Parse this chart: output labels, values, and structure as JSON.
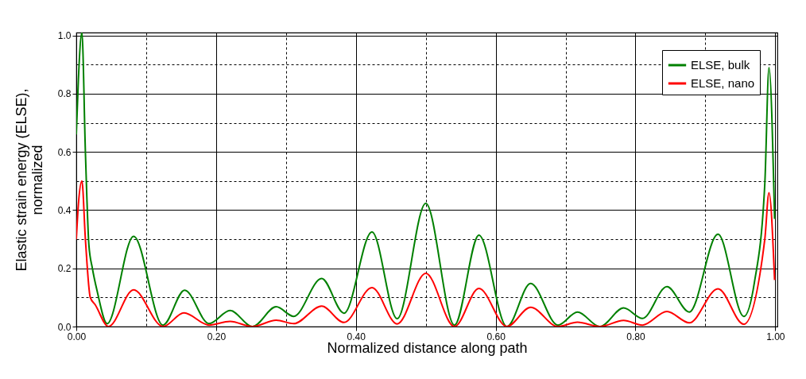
{
  "chart_data": {
    "type": "line",
    "xlabel": "Normalized distance along path",
    "ylabel": "Elastic strain energy (ELSE), normalized",
    "xlim": [
      0,
      1.003
    ],
    "ylim": [
      0,
      1.01
    ],
    "xticks": [
      {
        "value": 0,
        "label": "0.00"
      },
      {
        "value": 0.1,
        "label": null
      },
      {
        "value": 0.2,
        "label": "0.20"
      },
      {
        "value": 0.3,
        "label": null
      },
      {
        "value": 0.4,
        "label": "0.40"
      },
      {
        "value": 0.5,
        "label": null
      },
      {
        "value": 0.6,
        "label": "0.60"
      },
      {
        "value": 0.7,
        "label": null
      },
      {
        "value": 0.8,
        "label": "0.80"
      },
      {
        "value": 0.9,
        "label": null
      },
      {
        "value": 1,
        "label": "1.00"
      }
    ],
    "yticks": [
      {
        "value": 0,
        "label": "0.0"
      },
      {
        "value": 0.1,
        "label": null
      },
      {
        "value": 0.2,
        "label": "0.2"
      },
      {
        "value": 0.3,
        "label": null
      },
      {
        "value": 0.4,
        "label": "0.4"
      },
      {
        "value": 0.5,
        "label": null
      },
      {
        "value": 0.6,
        "label": "0.6"
      },
      {
        "value": 0.7,
        "label": null
      },
      {
        "value": 0.8,
        "label": "0.8"
      },
      {
        "value": 0.9,
        "label": null
      },
      {
        "value": 1,
        "label": "1.0"
      }
    ],
    "grid": true,
    "legend": "top right",
    "line_style": "solid",
    "series": [
      {
        "name": "ELSE, bulk",
        "color": "#008000",
        "x": [
          0,
          0.003,
          0.008,
          0.013,
          0.018,
          0.023,
          0.03,
          0.044,
          0.082,
          0.124,
          0.155,
          0.19,
          0.22,
          0.252,
          0.286,
          0.311,
          0.351,
          0.383,
          0.423,
          0.459,
          0.5,
          0.541,
          0.576,
          0.616,
          0.65,
          0.689,
          0.717,
          0.749,
          0.783,
          0.81,
          0.845,
          0.877,
          0.918,
          0.955,
          0.97,
          0.985,
          0.991,
          0.999
        ],
        "values": [
          0.66,
          0.85,
          1.01,
          0.6,
          0.28,
          0.2,
          0.12,
          0.01,
          0.31,
          0.005,
          0.125,
          0.01,
          0.055,
          0.0,
          0.068,
          0.035,
          0.165,
          0.046,
          0.325,
          0.027,
          0.423,
          0.005,
          0.314,
          0.0,
          0.148,
          0.005,
          0.05,
          0.0,
          0.064,
          0.028,
          0.137,
          0.05,
          0.317,
          0.035,
          0.15,
          0.49,
          0.89,
          0.37
        ]
      },
      {
        "name": "ELSE, nano",
        "color": "#ff0000",
        "x": [
          0,
          0.003,
          0.008,
          0.013,
          0.02,
          0.027,
          0.046,
          0.082,
          0.124,
          0.154,
          0.19,
          0.22,
          0.252,
          0.286,
          0.311,
          0.351,
          0.383,
          0.423,
          0.459,
          0.5,
          0.541,
          0.576,
          0.616,
          0.65,
          0.689,
          0.717,
          0.749,
          0.783,
          0.81,
          0.845,
          0.877,
          0.918,
          0.955,
          0.985,
          0.991,
          0.999
        ],
        "values": [
          0.3,
          0.42,
          0.5,
          0.3,
          0.1,
          0.075,
          0.0,
          0.126,
          0.0,
          0.047,
          0.005,
          0.018,
          0.0,
          0.022,
          0.01,
          0.07,
          0.014,
          0.134,
          0.009,
          0.183,
          0.0,
          0.131,
          0.0,
          0.066,
          0.0,
          0.015,
          0.0,
          0.021,
          0.005,
          0.052,
          0.013,
          0.13,
          0.008,
          0.3,
          0.46,
          0.16
        ]
      }
    ]
  }
}
